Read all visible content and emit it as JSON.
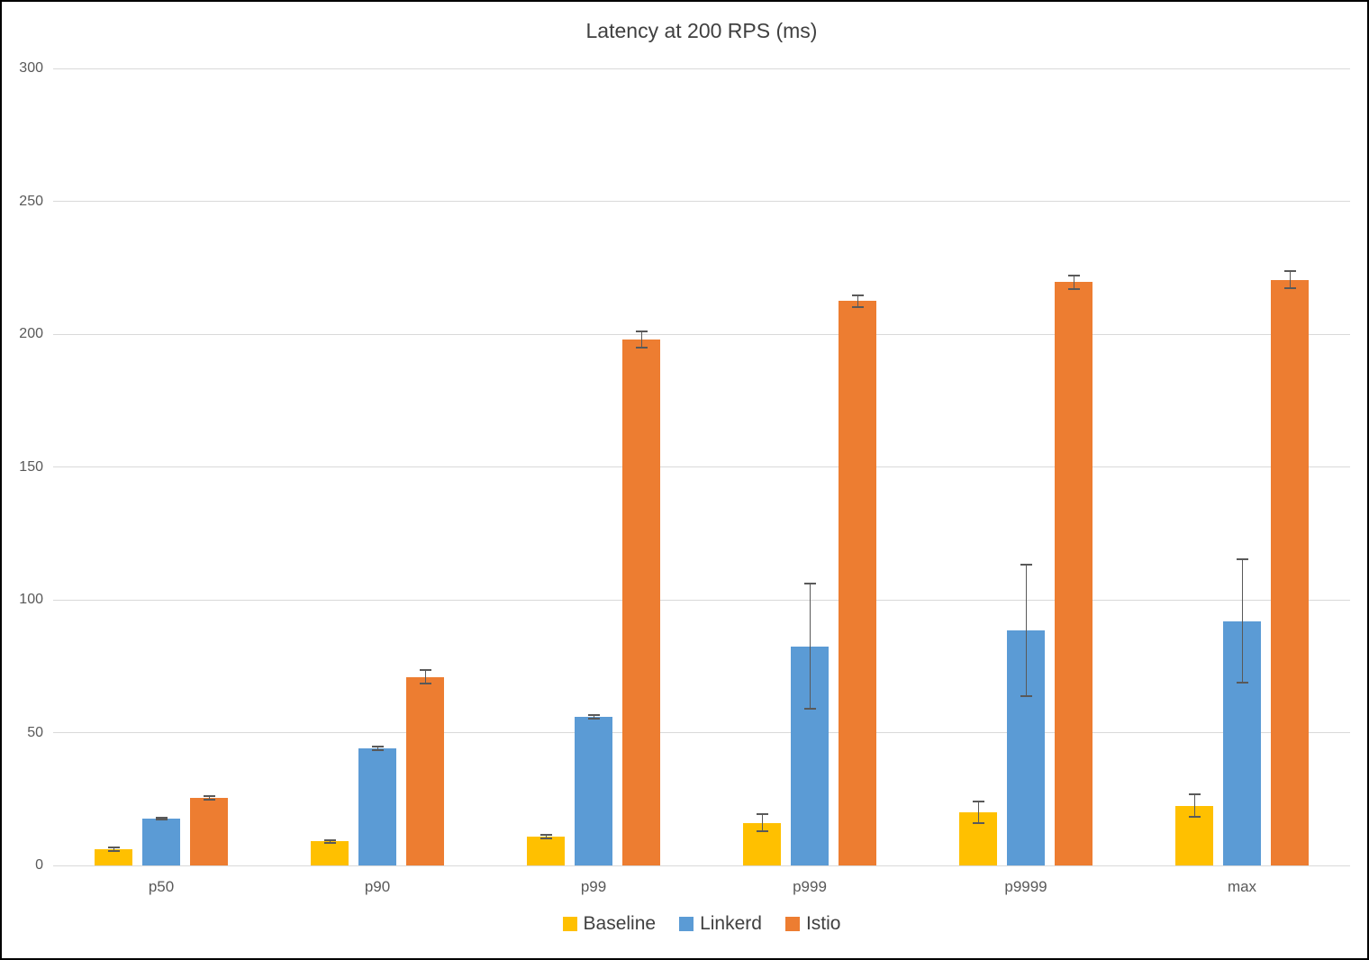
{
  "chart_data": {
    "type": "bar",
    "title": "Latency at 200 RPS (ms)",
    "categories": [
      "p50",
      "p90",
      "p99",
      "p999",
      "p9999",
      "max"
    ],
    "series": [
      {
        "name": "Baseline",
        "color": "#FFC000",
        "values": [
          6,
          9,
          11,
          16,
          20,
          22.5
        ],
        "errors": [
          1,
          1,
          1,
          3.5,
          4.5,
          4.5
        ]
      },
      {
        "name": "Linkerd",
        "color": "#5B9BD5",
        "values": [
          17.5,
          44,
          56,
          82.5,
          88.5,
          92
        ],
        "errors": [
          0.5,
          1,
          1,
          24,
          25,
          23.5
        ]
      },
      {
        "name": "Istio",
        "color": "#ED7D31",
        "values": [
          25.5,
          71,
          198,
          212.5,
          219.5,
          220.5
        ],
        "errors": [
          1,
          3,
          3.5,
          2.5,
          3,
          3.5
        ]
      }
    ],
    "ylim": [
      0,
      300
    ],
    "yticks": [
      0,
      50,
      100,
      150,
      200,
      250,
      300
    ],
    "grid": true,
    "legend_position": "bottom",
    "gridline_color": "#d9d9d9",
    "axis_label_color": "#595959",
    "title_color": "#404040",
    "error_bar_color": "#595959",
    "background_color": "#ffffff"
  }
}
